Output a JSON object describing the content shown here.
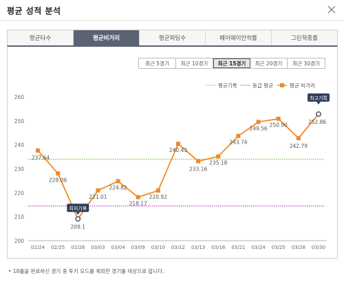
{
  "header": {
    "title": "평균 성적 분석"
  },
  "tabs": [
    {
      "label": "평균타수",
      "active": false
    },
    {
      "label": "평균비거리",
      "active": true
    },
    {
      "label": "평균퍼팅수",
      "active": false
    },
    {
      "label": "페어웨이안착률",
      "active": false
    },
    {
      "label": "그린적중률",
      "active": false
    }
  ],
  "ranges": [
    {
      "label": "최근 5경기",
      "active": false
    },
    {
      "label": "최근 10경기",
      "active": false
    },
    {
      "label": "최근 15경기",
      "active": true
    },
    {
      "label": "최근 20경기",
      "active": false
    },
    {
      "label": "최근 30경기",
      "active": false
    }
  ],
  "chart_data": {
    "type": "line",
    "categories": [
      "02/24",
      "02/25",
      "02/28",
      "03/03",
      "03/04",
      "03/09",
      "03/10",
      "03/12",
      "03/13",
      "03/16",
      "03/21",
      "03/24",
      "03/25",
      "03/28",
      "03/30"
    ],
    "series": [
      {
        "name": "평균 비거리",
        "values": [
          237.64,
          228.06,
          209.1,
          221.01,
          224.82,
          218.17,
          220.92,
          240.43,
          233.16,
          235.18,
          243.74,
          249.56,
          250.9,
          242.79,
          252.86
        ]
      }
    ],
    "reference_lines": [
      {
        "name": "평균기록",
        "value": 234,
        "color": "#7fd13a",
        "style": "dotted"
      },
      {
        "name": "동급 평균",
        "value": 214.5,
        "color": "#c040c0",
        "style": "dotted"
      }
    ],
    "y_ticks": [
      200,
      210,
      220,
      230,
      240,
      250,
      260
    ],
    "ylim": [
      200,
      260
    ],
    "grid": false,
    "legend_position": "top-right",
    "series_color": "#f08a24",
    "annotations": [
      {
        "label": "최저기록",
        "index": 2
      },
      {
        "label": "최고기록",
        "index": 14
      }
    ],
    "value_labels": [
      "237.64",
      "228.06",
      "209.1",
      "221.01",
      "224.82",
      "218.17",
      "220.92",
      "240.43",
      "233.16",
      "235.18",
      "243.74",
      "249.56",
      "250.90",
      "242.79",
      "252.86"
    ]
  },
  "footnote": "• 18홀을 완료하신 경기 중 투키 모드를 제외한 경기를 대상으로 합니다."
}
